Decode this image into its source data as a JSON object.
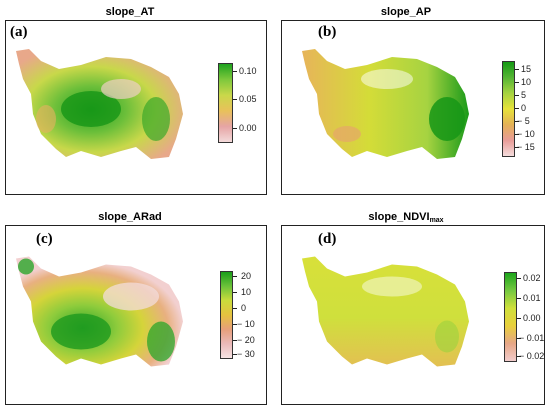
{
  "panels": [
    {
      "id": "a",
      "label": "(a)",
      "title": "slope_AT",
      "title_sub": "",
      "ticks": [
        "0.10",
        "0.05",
        "0.00"
      ],
      "colorbar": [
        "#1fa31f",
        "#7ec83c",
        "#c9d84a",
        "#e8c15a",
        "#e6a4a4",
        "#f3dada"
      ],
      "map_colors": {
        "high": "#1f9e1f",
        "mid": "#b8d84a",
        "low": "#e8a88a"
      }
    },
    {
      "id": "b",
      "label": "(b)",
      "title": "slope_AP",
      "title_sub": "",
      "ticks": [
        "15",
        "10",
        "5",
        "0",
        "− 5",
        "− 10",
        "− 15"
      ],
      "colorbar": [
        "#159a15",
        "#55b534",
        "#a6d341",
        "#e7e23a",
        "#e4b156",
        "#e89c98",
        "#f4dcdc"
      ],
      "map_colors": {
        "high": "#1a9a1a",
        "mid": "#d4dc38",
        "low": "#e7b45a"
      }
    },
    {
      "id": "c",
      "label": "(c)",
      "title": "slope_ARad",
      "title_sub": "",
      "ticks": [
        "20",
        "10",
        "0",
        "− 10",
        "− 20",
        "− 30"
      ],
      "colorbar": [
        "#1a9e1a",
        "#6cc23a",
        "#cbdc3c",
        "#e5c23f",
        "#e79f7a",
        "#eab9b9",
        "#f6e4e4"
      ],
      "map_colors": {
        "high": "#2aa52a",
        "mid": "#d5d43a",
        "low": "#eab0a0"
      }
    },
    {
      "id": "d",
      "label": "(d)",
      "title": "slope_NDVI",
      "title_sub": "max",
      "ticks": [
        "0.02",
        "0.01",
        "0.00",
        "− 0.01",
        "− 0.02"
      ],
      "colorbar": [
        "#1ca51c",
        "#74c840",
        "#cfe03c",
        "#e8d03c",
        "#e6a686",
        "#f1cccc"
      ],
      "map_colors": {
        "high": "#8fcf3c",
        "mid": "#d8e03a",
        "low": "#e3c052"
      }
    }
  ]
}
